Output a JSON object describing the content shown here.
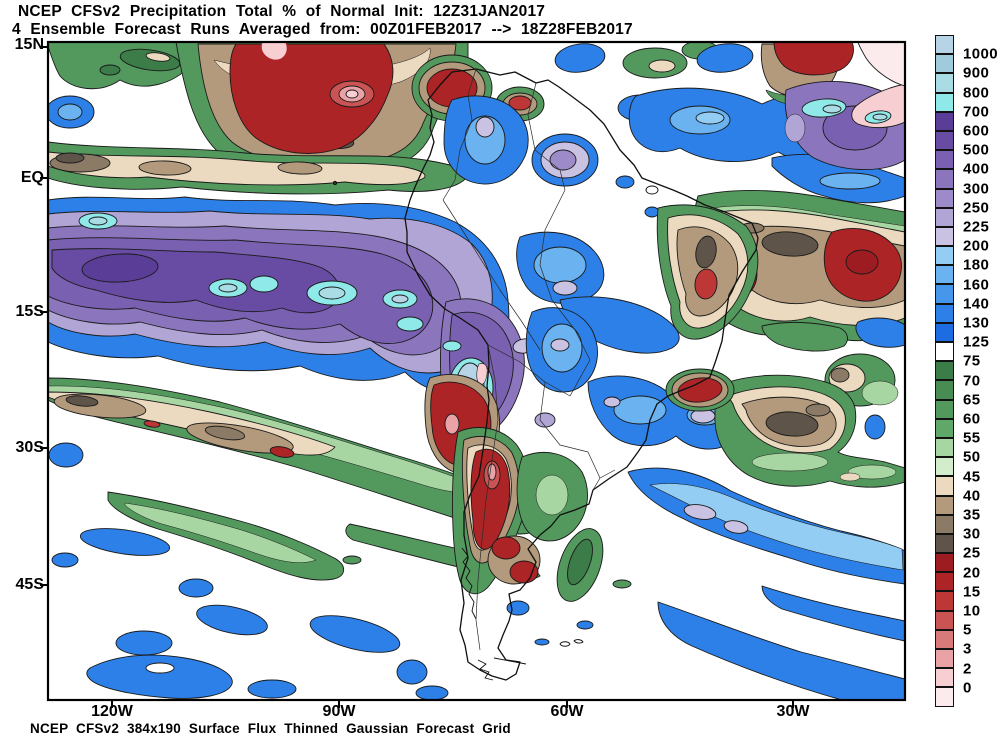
{
  "header": {
    "line1": "NCEP CFSv2 Precipitation Total % of Normal Init: 12Z31JAN2017",
    "line2": "4 Ensemble Forecast Runs Averaged from: 00Z01FEB2017 --> 18Z28FEB2017"
  },
  "map": {
    "lat_labels": [
      "15N",
      "EQ",
      "15S",
      "30S",
      "45S"
    ],
    "lon_labels": [
      "120W",
      "90W",
      "60W",
      "30W"
    ]
  },
  "legend": {
    "values": [
      "1000",
      "900",
      "800",
      "700",
      "600",
      "500",
      "400",
      "300",
      "250",
      "225",
      "200",
      "180",
      "160",
      "140",
      "130",
      "125",
      "75",
      "70",
      "65",
      "60",
      "55",
      "50",
      "45",
      "40",
      "35",
      "30",
      "25",
      "20",
      "15",
      "10",
      "5",
      "3",
      "2",
      "0"
    ],
    "colors": [
      "#b7d3e6",
      "#9fcbdc",
      "#a9dce4",
      "#8fe9e9",
      "#5a3d96",
      "#684ba2",
      "#7a60b0",
      "#8b76be",
      "#9d8bc9",
      "#b1a5d5",
      "#cac2e2",
      "#93cdf4",
      "#6ab2f0",
      "#4697ec",
      "#2c80e7",
      "#1e6ce2",
      "#ffffff",
      "#3c7c49",
      "#488b53",
      "#53995e",
      "#5fa86a",
      "#a8d6a2",
      "#d3edcc",
      "#ebdabf",
      "#b49a7c",
      "#8b7b66",
      "#5e544a",
      "#9c1c22",
      "#ad2426",
      "#bd3737",
      "#ca5353",
      "#d87a7a",
      "#e9a3a7",
      "#f7cfd3",
      "#fcebec"
    ]
  },
  "footer": {
    "caption": "NCEP CFSv2 384x190 Surface Flux Thinned Gaussian Forecast Grid"
  }
}
